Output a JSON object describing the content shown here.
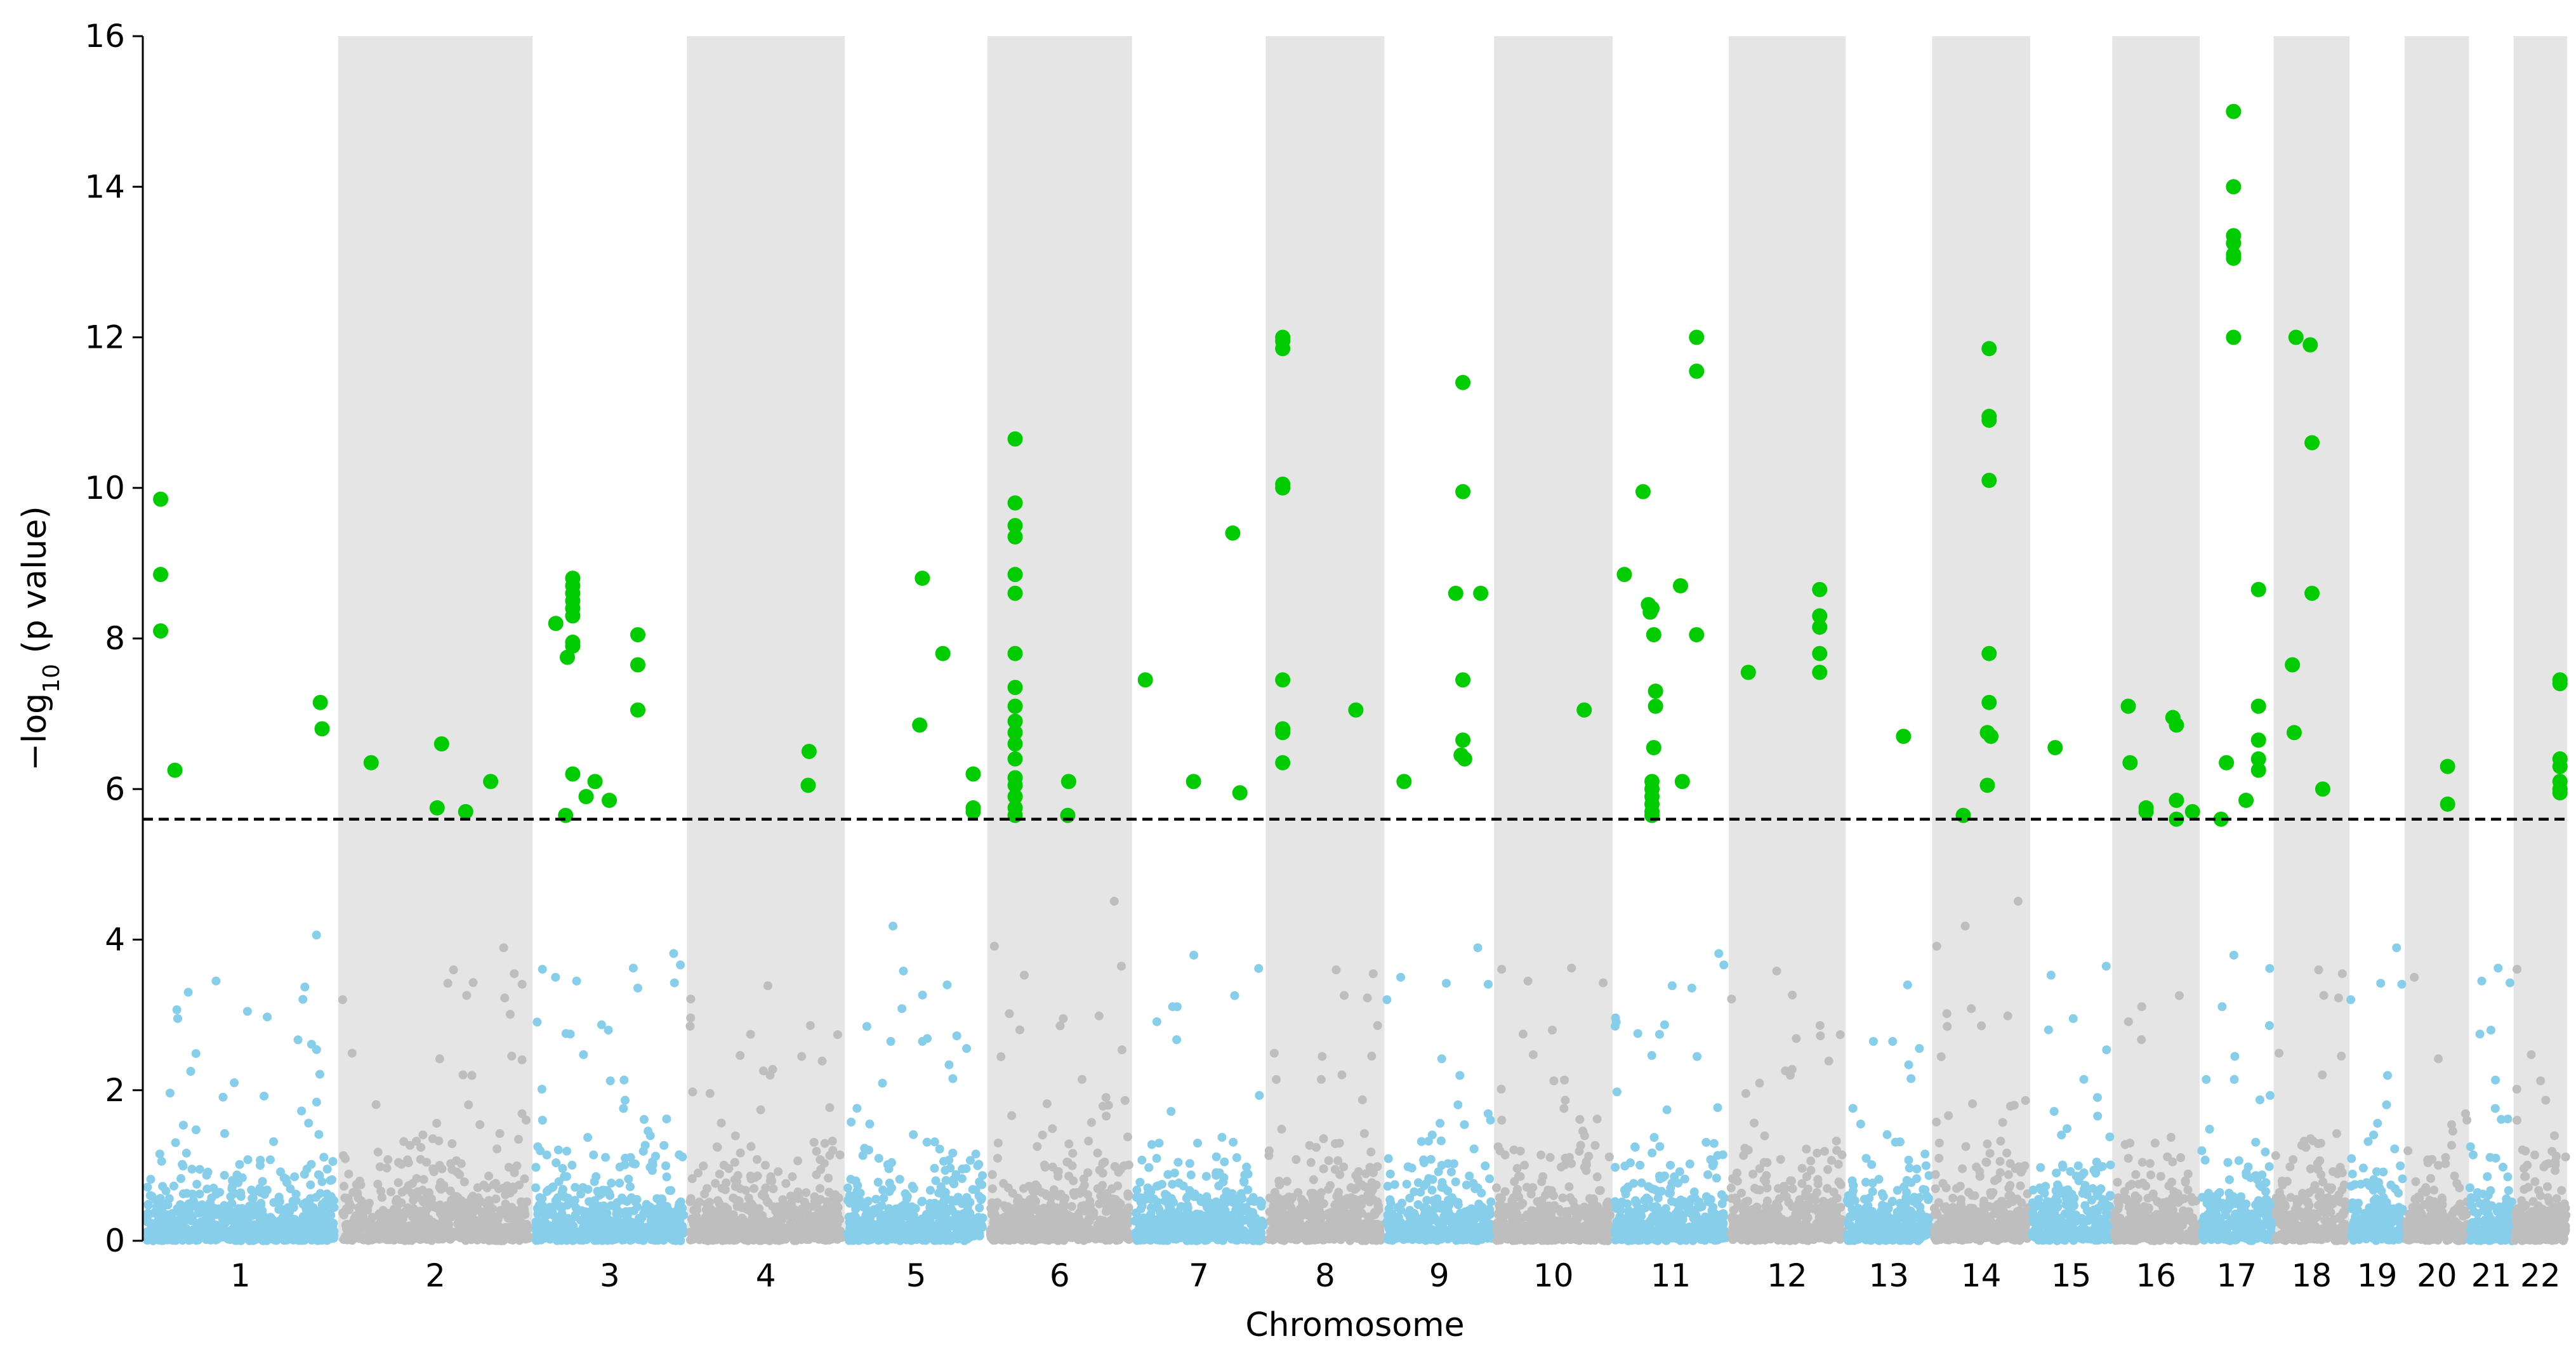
{
  "chart_data": {
    "type": "scatter",
    "subtype": "manhattan",
    "title": "",
    "xlabel": "Chromosome",
    "ylabel_main": "−log",
    "ylabel_sub": "10",
    "ylabel_rest": " (p value)",
    "ylim": [
      0,
      16
    ],
    "yticks": [
      0,
      2,
      4,
      6,
      8,
      10,
      12,
      14,
      16
    ],
    "threshold": 5.6,
    "colors": {
      "odd_points": "#87CEEB",
      "even_points": "#BEBEBE",
      "significant": "#00CC00",
      "band": "#E5E5E5",
      "threshold": "#000000"
    },
    "chromosomes": [
      {
        "label": "1",
        "start": 0.0,
        "end": 219.0
      },
      {
        "label": "2",
        "start": 219.0,
        "end": 437.0
      },
      {
        "label": "3",
        "start": 437.0,
        "end": 610.0
      },
      {
        "label": "4",
        "start": 610.0,
        "end": 787.0
      },
      {
        "label": "5",
        "start": 787.0,
        "end": 947.0
      },
      {
        "label": "6",
        "start": 947.0,
        "end": 1109.0
      },
      {
        "label": "7",
        "start": 1109.0,
        "end": 1259.0
      },
      {
        "label": "8",
        "start": 1259.0,
        "end": 1392.0
      },
      {
        "label": "9",
        "start": 1392.0,
        "end": 1515.0
      },
      {
        "label": "10",
        "start": 1515.0,
        "end": 1648.0
      },
      {
        "label": "11",
        "start": 1648.0,
        "end": 1778.0
      },
      {
        "label": "12",
        "start": 1778.0,
        "end": 1909.0
      },
      {
        "label": "13",
        "start": 1909.0,
        "end": 2006.0
      },
      {
        "label": "14",
        "start": 2006.0,
        "end": 2116.0
      },
      {
        "label": "15",
        "start": 2116.0,
        "end": 2208.0
      },
      {
        "label": "16",
        "start": 2208.0,
        "end": 2306.0
      },
      {
        "label": "17",
        "start": 2306.0,
        "end": 2389.0
      },
      {
        "label": "18",
        "start": 2389.0,
        "end": 2474.0
      },
      {
        "label": "19",
        "start": 2474.0,
        "end": 2536.0
      },
      {
        "label": "20",
        "start": 2536.0,
        "end": 2608.0
      },
      {
        "label": "21",
        "start": 2608.0,
        "end": 2658.0
      },
      {
        "label": "22",
        "start": 2658.0,
        "end": 2718.0
      }
    ],
    "significant_points": [
      [
        20.0,
        9.85
      ],
      [
        20.0,
        8.85
      ],
      [
        20.0,
        8.1
      ],
      [
        36.0,
        6.25
      ],
      [
        199.0,
        7.15
      ],
      [
        201.0,
        6.8
      ],
      [
        256.0,
        6.35
      ],
      [
        335.0,
        6.6
      ],
      [
        330.0,
        5.75
      ],
      [
        390.0,
        6.1
      ],
      [
        362.0,
        5.7
      ],
      [
        463.0,
        8.2
      ],
      [
        482.0,
        8.8
      ],
      [
        482.0,
        8.7
      ],
      [
        482.0,
        8.6
      ],
      [
        482.0,
        8.5
      ],
      [
        482.0,
        8.4
      ],
      [
        482.0,
        8.3
      ],
      [
        482.0,
        7.95
      ],
      [
        482.0,
        7.9
      ],
      [
        476.0,
        7.75
      ],
      [
        474.0,
        5.65
      ],
      [
        482.0,
        6.2
      ],
      [
        497.0,
        5.9
      ],
      [
        507.0,
        6.1
      ],
      [
        523.0,
        5.85
      ],
      [
        555.0,
        8.05
      ],
      [
        555.0,
        7.65
      ],
      [
        555.0,
        7.05
      ],
      [
        747.0,
        6.5
      ],
      [
        746.0,
        6.05
      ],
      [
        874.0,
        8.8
      ],
      [
        871.0,
        6.85
      ],
      [
        897.0,
        7.8
      ],
      [
        931.0,
        6.2
      ],
      [
        931.0,
        5.75
      ],
      [
        931.0,
        5.7
      ],
      [
        978.0,
        10.65
      ],
      [
        978.0,
        9.8
      ],
      [
        978.0,
        9.5
      ],
      [
        978.0,
        9.35
      ],
      [
        978.0,
        8.85
      ],
      [
        978.0,
        8.6
      ],
      [
        978.0,
        7.8
      ],
      [
        978.0,
        7.35
      ],
      [
        978.0,
        7.1
      ],
      [
        978.0,
        6.9
      ],
      [
        978.0,
        6.75
      ],
      [
        978.0,
        6.6
      ],
      [
        978.0,
        6.4
      ],
      [
        978.0,
        6.15
      ],
      [
        978.0,
        6.05
      ],
      [
        978.0,
        5.9
      ],
      [
        978.0,
        5.75
      ],
      [
        978.0,
        5.65
      ],
      [
        1038.0,
        6.1
      ],
      [
        1037.0,
        5.65
      ],
      [
        1124.0,
        7.45
      ],
      [
        1178.0,
        6.1
      ],
      [
        1222.0,
        9.4
      ],
      [
        1230.0,
        5.95
      ],
      [
        1278.0,
        12.0
      ],
      [
        1278.0,
        11.95
      ],
      [
        1278.0,
        11.85
      ],
      [
        1278.0,
        10.05
      ],
      [
        1278.0,
        10.0
      ],
      [
        1278.0,
        7.45
      ],
      [
        1278.0,
        6.8
      ],
      [
        1278.0,
        6.75
      ],
      [
        1278.0,
        6.35
      ],
      [
        1360.0,
        7.05
      ],
      [
        1414.0,
        6.1
      ],
      [
        1472.0,
        8.6
      ],
      [
        1480.0,
        11.4
      ],
      [
        1480.0,
        9.95
      ],
      [
        1480.0,
        7.45
      ],
      [
        1480.0,
        6.65
      ],
      [
        1478.0,
        6.45
      ],
      [
        1482.0,
        6.4
      ],
      [
        1500.0,
        8.6
      ],
      [
        1616.0,
        7.05
      ],
      [
        1661.0,
        8.85
      ],
      [
        1682.0,
        9.95
      ],
      [
        1688.0,
        8.45
      ],
      [
        1690.0,
        8.35
      ],
      [
        1692.0,
        8.4
      ],
      [
        1694.0,
        8.05
      ],
      [
        1696.0,
        7.3
      ],
      [
        1696.0,
        7.1
      ],
      [
        1694.0,
        6.55
      ],
      [
        1692.0,
        6.1
      ],
      [
        1692.0,
        6.0
      ],
      [
        1692.0,
        5.9
      ],
      [
        1692.0,
        5.8
      ],
      [
        1692.0,
        5.7
      ],
      [
        1692.0,
        5.65
      ],
      [
        1724.0,
        8.7
      ],
      [
        1726.0,
        6.1
      ],
      [
        1742.0,
        12.0
      ],
      [
        1742.0,
        11.55
      ],
      [
        1742.0,
        8.05
      ],
      [
        1800.0,
        7.55
      ],
      [
        1880.0,
        8.65
      ],
      [
        1880.0,
        8.3
      ],
      [
        1880.0,
        8.15
      ],
      [
        1880.0,
        7.8
      ],
      [
        1880.0,
        7.55
      ],
      [
        1974.0,
        6.7
      ],
      [
        2041.0,
        5.65
      ],
      [
        2070.0,
        11.85
      ],
      [
        2070.0,
        10.95
      ],
      [
        2070.0,
        10.9
      ],
      [
        2070.0,
        10.1
      ],
      [
        2070.0,
        7.8
      ],
      [
        2070.0,
        7.15
      ],
      [
        2068.0,
        6.75
      ],
      [
        2072.0,
        6.7
      ],
      [
        2068.0,
        6.05
      ],
      [
        2144.0,
        6.55
      ],
      [
        2226.0,
        7.1
      ],
      [
        2228.0,
        6.35
      ],
      [
        2246.0,
        5.75
      ],
      [
        2246.0,
        5.7
      ],
      [
        2276.0,
        6.95
      ],
      [
        2280.0,
        6.85
      ],
      [
        2280.0,
        5.85
      ],
      [
        2280.0,
        5.6
      ],
      [
        2298.0,
        5.7
      ],
      [
        2330.0,
        5.6
      ],
      [
        2336.0,
        6.35
      ],
      [
        2344.0,
        15.0
      ],
      [
        2344.0,
        14.0
      ],
      [
        2344.0,
        13.35
      ],
      [
        2344.0,
        13.25
      ],
      [
        2344.0,
        13.1
      ],
      [
        2344.0,
        13.05
      ],
      [
        2344.0,
        12.0
      ],
      [
        2358.0,
        5.85
      ],
      [
        2372.0,
        8.65
      ],
      [
        2372.0,
        7.1
      ],
      [
        2372.0,
        6.65
      ],
      [
        2372.0,
        6.4
      ],
      [
        2372.0,
        6.25
      ],
      [
        2412.0,
        6.75
      ],
      [
        2410.0,
        7.65
      ],
      [
        2414.0,
        12.0
      ],
      [
        2430.0,
        11.9
      ],
      [
        2432.0,
        10.6
      ],
      [
        2432.0,
        8.6
      ],
      [
        2444.0,
        6.0
      ],
      [
        2584.0,
        6.3
      ],
      [
        2584.0,
        5.8
      ],
      [
        2710.0,
        7.45
      ],
      [
        2710.0,
        7.4
      ],
      [
        2710.0,
        6.4
      ],
      [
        2710.0,
        6.3
      ],
      [
        2710.0,
        6.1
      ],
      [
        2710.0,
        6.0
      ],
      [
        2710.0,
        5.95
      ]
    ]
  }
}
